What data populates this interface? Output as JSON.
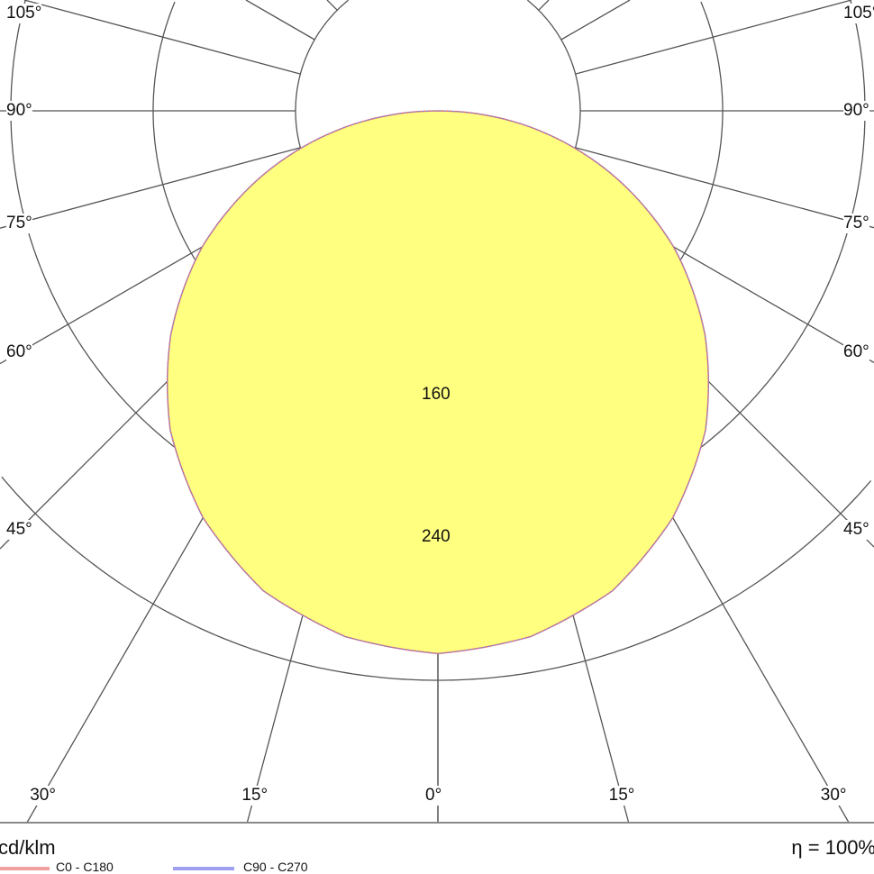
{
  "chart_data": {
    "type": "polar",
    "unit_label": "cd/klm",
    "efficiency_label": "η = 100%",
    "radial_rings": [
      80,
      160,
      240,
      320
    ],
    "ring_labels_shown": [
      "160",
      "240"
    ],
    "angle_labels": [
      "105°",
      "90°",
      "75°",
      "60°",
      "45°",
      "30°",
      "15°",
      "0°"
    ],
    "angle_ticks_deg": [
      105,
      90,
      75,
      60,
      45,
      30,
      15,
      0
    ],
    "grid": true,
    "fill_color": "#ffff80",
    "series": [
      {
        "name": "C0 - C180",
        "color": "#e07070",
        "gamma": [
          0,
          10,
          20,
          30,
          40,
          50,
          60,
          70,
          80,
          90
        ],
        "values": [
          305,
          300,
          287,
          264,
          234,
          196,
          153,
          104,
          53,
          0
        ]
      },
      {
        "name": "C90 - C270",
        "color": "#8080e0",
        "gamma": [
          0,
          10,
          20,
          30,
          40,
          50,
          60,
          70,
          80,
          90
        ],
        "values": [
          305,
          300,
          287,
          264,
          234,
          196,
          153,
          104,
          53,
          0
        ]
      }
    ]
  }
}
